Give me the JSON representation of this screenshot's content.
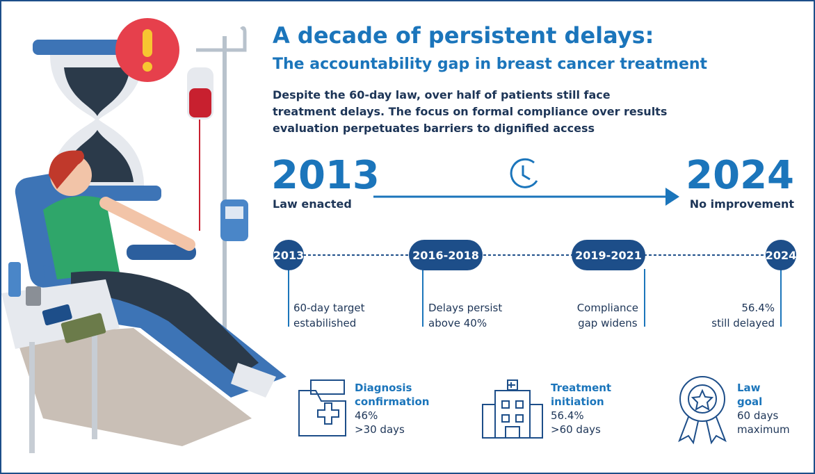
{
  "header": {
    "title": "A decade of persistent delays:",
    "subtitle": "The accountability gap in breast cancer treatment",
    "description": [
      "Despite the 60-day law, over half of patients still face",
      "treatment delays. The focus on formal compliance over results",
      "evaluation perpetuates barriers to dignified access"
    ]
  },
  "period": {
    "start": {
      "year": "2013",
      "label": "Law enacted"
    },
    "end": {
      "year": "2024",
      "label": "No improvement"
    }
  },
  "milestones": [
    {
      "period": "2013",
      "note": [
        "60-day target",
        "estabilished"
      ]
    },
    {
      "period": "2016-2018",
      "note": [
        "Delays persist",
        "above 40%"
      ]
    },
    {
      "period": "2019-2021",
      "note": [
        "Compliance",
        "gap widens"
      ]
    },
    {
      "period": "2024",
      "note": [
        "56.4%",
        "still delayed"
      ]
    }
  ],
  "stats": [
    {
      "title": [
        "Diagnosis",
        "confirmation"
      ],
      "value": "46%",
      "detail": ">30 days"
    },
    {
      "title": [
        "Treatment",
        "initiation"
      ],
      "value": "56.4%",
      "detail": ">60 days"
    },
    {
      "title": [
        "Law",
        "goal"
      ],
      "value": "60 days",
      "detail": "maximum"
    }
  ]
}
